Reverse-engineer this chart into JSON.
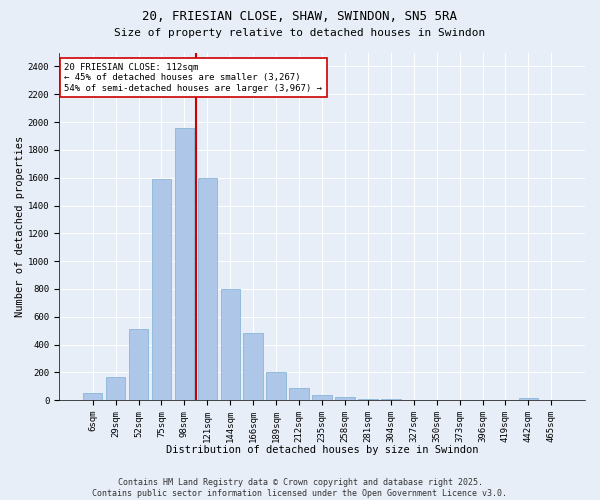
{
  "title": "20, FRIESIAN CLOSE, SHAW, SWINDON, SN5 5RA",
  "subtitle": "Size of property relative to detached houses in Swindon",
  "xlabel": "Distribution of detached houses by size in Swindon",
  "ylabel": "Number of detached properties",
  "categories": [
    "6sqm",
    "29sqm",
    "52sqm",
    "75sqm",
    "98sqm",
    "121sqm",
    "144sqm",
    "166sqm",
    "189sqm",
    "212sqm",
    "235sqm",
    "258sqm",
    "281sqm",
    "304sqm",
    "327sqm",
    "350sqm",
    "373sqm",
    "396sqm",
    "419sqm",
    "442sqm",
    "465sqm"
  ],
  "values": [
    50,
    170,
    510,
    1590,
    1960,
    1600,
    800,
    480,
    200,
    90,
    35,
    20,
    12,
    8,
    5,
    4,
    3,
    2,
    0,
    15,
    0
  ],
  "bar_color": "#aec6e8",
  "bar_edge_color": "#7aafd4",
  "vline_x_index": 4.5,
  "vline_color": "#cc0000",
  "annotation_text": "20 FRIESIAN CLOSE: 112sqm\n← 45% of detached houses are smaller (3,267)\n54% of semi-detached houses are larger (3,967) →",
  "annotation_box_color": "#ffffff",
  "annotation_box_edge": "#cc0000",
  "ylim": [
    0,
    2500
  ],
  "yticks": [
    0,
    200,
    400,
    600,
    800,
    1000,
    1200,
    1400,
    1600,
    1800,
    2000,
    2200,
    2400
  ],
  "background_color": "#e8eef7",
  "footer_line1": "Contains HM Land Registry data © Crown copyright and database right 2025.",
  "footer_line2": "Contains public sector information licensed under the Open Government Licence v3.0.",
  "title_fontsize": 9,
  "subtitle_fontsize": 8,
  "xlabel_fontsize": 7.5,
  "ylabel_fontsize": 7.5,
  "tick_fontsize": 6.5,
  "annotation_fontsize": 6.5,
  "footer_fontsize": 6
}
